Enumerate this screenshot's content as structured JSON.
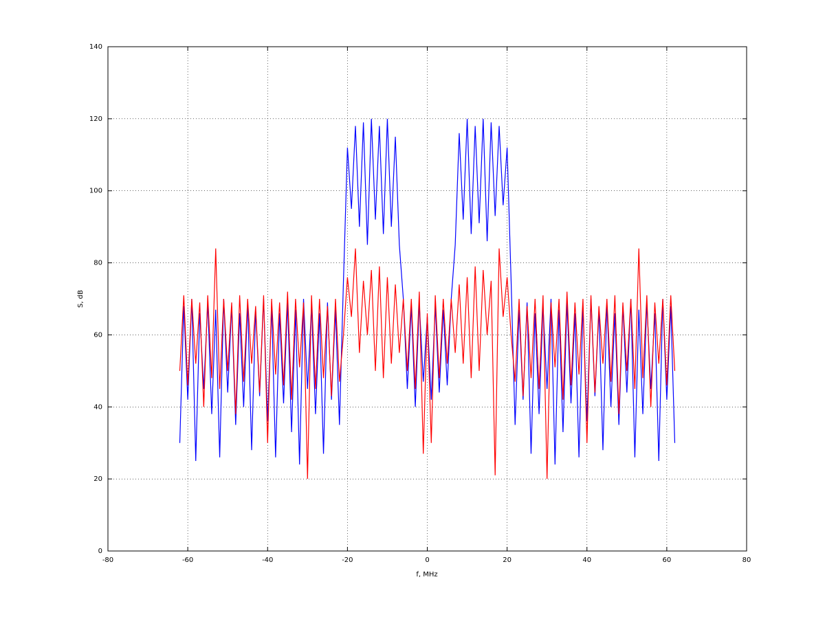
{
  "chart_data": {
    "type": "line",
    "xlabel": "f, MHz",
    "ylabel": "S, dB",
    "x": [
      -62,
      -61,
      -60,
      -59,
      -58,
      -57,
      -56,
      -55,
      -54,
      -53,
      -52,
      -51,
      -50,
      -49,
      -48,
      -47,
      -46,
      -45,
      -44,
      -43,
      -42,
      -41,
      -40,
      -39,
      -38,
      -37,
      -36,
      -35,
      -34,
      -33,
      -32,
      -31,
      -30,
      -29,
      -28,
      -27,
      -26,
      -25,
      -24,
      -23,
      -22,
      -21,
      -20,
      -19,
      -18,
      -17,
      -16,
      -15,
      -14,
      -13,
      -12,
      -11,
      -10,
      -9,
      -8,
      -7,
      -6,
      -5,
      -4,
      -3,
      -2,
      -1,
      0,
      1,
      2,
      3,
      4,
      5,
      6,
      7,
      8,
      9,
      10,
      11,
      12,
      13,
      14,
      15,
      16,
      17,
      18,
      19,
      20,
      21,
      22,
      23,
      24,
      25,
      26,
      27,
      28,
      29,
      30,
      31,
      32,
      33,
      34,
      35,
      36,
      37,
      38,
      39,
      40,
      41,
      42,
      43,
      44,
      45,
      46,
      47,
      48,
      49,
      50,
      51,
      52,
      53,
      54,
      55,
      56,
      57,
      58,
      59,
      60,
      61,
      62
    ],
    "series": [
      {
        "color": "#0000ff",
        "values": [
          30,
          68,
          42,
          70,
          25,
          66,
          45,
          69,
          38,
          67,
          26,
          70,
          44,
          68,
          35,
          66,
          40,
          69,
          28,
          67,
          43,
          70,
          36,
          68,
          26,
          66,
          41,
          69,
          33,
          67,
          24,
          70,
          45,
          68,
          38,
          66,
          27,
          69,
          42,
          67,
          35,
          75,
          112,
          95,
          118,
          90,
          119,
          85,
          120,
          92,
          118,
          88,
          120,
          90,
          115,
          85,
          70,
          45,
          68,
          40,
          69,
          47,
          65,
          42,
          68,
          44,
          67,
          46,
          70,
          85,
          116,
          92,
          120,
          88,
          118,
          91,
          120,
          86,
          119,
          93,
          118,
          96,
          112,
          75,
          35,
          67,
          42,
          69,
          27,
          66,
          38,
          68,
          45,
          70,
          24,
          67,
          33,
          69,
          41,
          66,
          26,
          68,
          36,
          70,
          43,
          67,
          28,
          69,
          40,
          66,
          35,
          68,
          44,
          70,
          26,
          67,
          38,
          69,
          45,
          66,
          25,
          70,
          42,
          68,
          30
        ]
      },
      {
        "color": "#ff0000",
        "values": [
          50,
          71,
          46,
          70,
          52,
          69,
          40,
          71,
          48,
          84,
          45,
          70,
          50,
          69,
          38,
          71,
          47,
          70,
          52,
          68,
          44,
          71,
          30,
          70,
          49,
          69,
          46,
          72,
          42,
          70,
          51,
          69,
          20,
          71,
          45,
          70,
          48,
          68,
          43,
          70,
          47,
          60,
          76,
          65,
          84,
          55,
          75,
          60,
          78,
          50,
          79,
          48,
          76,
          52,
          74,
          55,
          70,
          50,
          70,
          45,
          72,
          27,
          66,
          30,
          71,
          48,
          70,
          52,
          70,
          55,
          74,
          52,
          76,
          48,
          79,
          50,
          78,
          60,
          75,
          21,
          84,
          65,
          76,
          60,
          47,
          70,
          43,
          68,
          48,
          70,
          45,
          71,
          20,
          69,
          51,
          70,
          42,
          72,
          46,
          69,
          49,
          70,
          30,
          71,
          44,
          68,
          52,
          70,
          47,
          71,
          38,
          69,
          50,
          70,
          45,
          84,
          48,
          71,
          40,
          69,
          52,
          70,
          46,
          71,
          50
        ]
      }
    ],
    "xlim": [
      -80,
      80
    ],
    "xticks": [
      -80,
      -60,
      -40,
      -20,
      0,
      20,
      40,
      60,
      80
    ],
    "ylim": [
      0,
      140
    ],
    "yticks": [
      0,
      20,
      40,
      60,
      80,
      100,
      120,
      140
    ],
    "grid": true
  }
}
